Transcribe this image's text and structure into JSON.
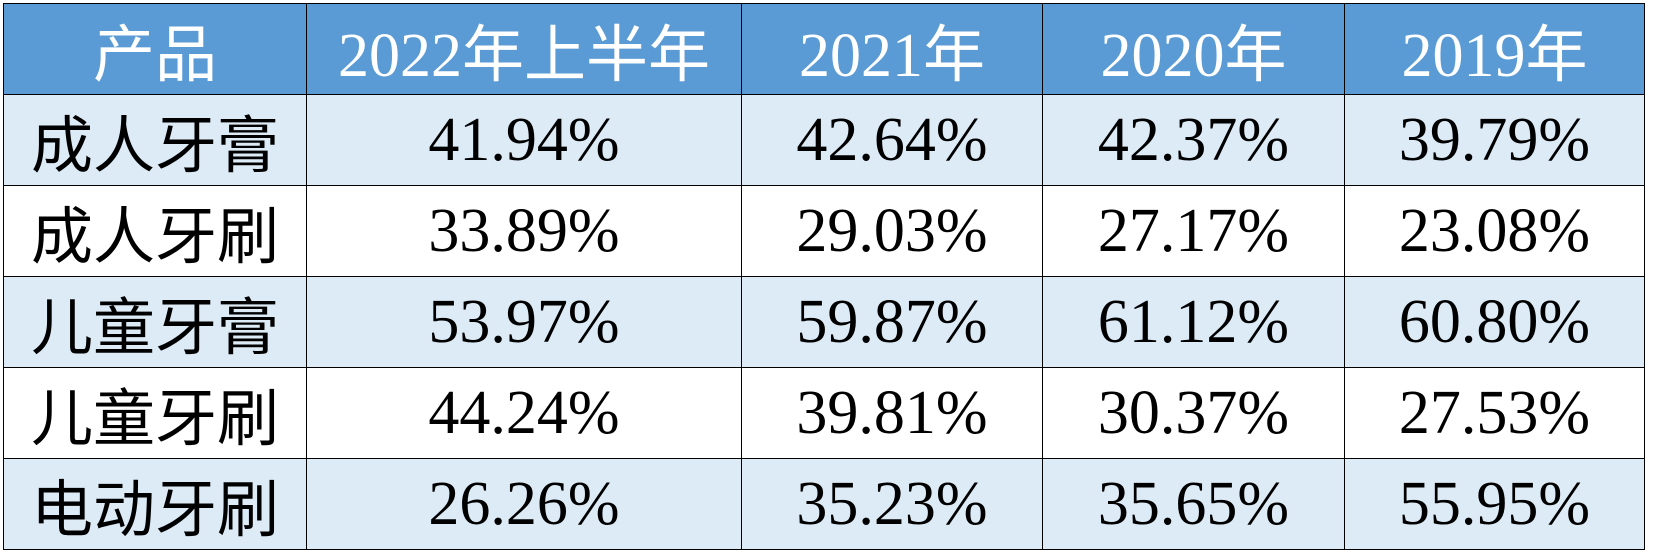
{
  "table": {
    "columns": [
      "产品",
      "2022年上半年",
      "2021年",
      "2020年",
      "2019年"
    ],
    "rows": [
      [
        "成人牙膏",
        "41.94%",
        "42.64%",
        "42.37%",
        "39.79%"
      ],
      [
        "成人牙刷",
        "33.89%",
        "29.03%",
        "27.17%",
        "23.08%"
      ],
      [
        "儿童牙膏",
        "53.97%",
        "59.87%",
        "61.12%",
        "60.80%"
      ],
      [
        "儿童牙刷",
        "44.24%",
        "39.81%",
        "30.37%",
        "27.53%"
      ],
      [
        "电动牙刷",
        "26.26%",
        "35.23%",
        "35.65%",
        "55.95%"
      ]
    ]
  }
}
